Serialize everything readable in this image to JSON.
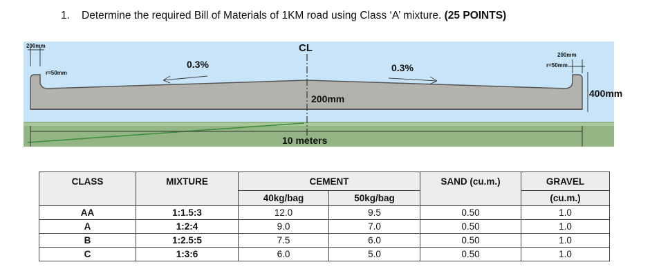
{
  "question": {
    "number": "1.",
    "text": "Determine the required Bill of Materials of 1KM road using Class ‘A’ mixture.",
    "points": "(25 POINTS)"
  },
  "diagram": {
    "centerline_label": "CL",
    "curb_left_width": "200mm",
    "curb_left_radius": "r=50mm",
    "curb_right_width": "200mm",
    "curb_right_radius": "r=50mm",
    "slope_left": "0.3%",
    "slope_right": "0.3%",
    "slab_thickness": "200mm",
    "curb_height": "400mm",
    "road_width": "10 meters",
    "colors": {
      "sky": "#c8e4f8",
      "concrete": "#b4b2ad",
      "grass": "#93b583"
    }
  },
  "table": {
    "headers": {
      "class": "CLASS",
      "mixture": "MIXTURE",
      "cement": "CEMENT",
      "cement_40": "40kg/bag",
      "cement_50": "50kg/bag",
      "sand": "SAND (cu.m.)",
      "gravel": "GRAVEL",
      "gravel_unit": "(cu.m.)"
    },
    "rows": [
      {
        "class": "AA",
        "mixture": "1:1.5:3",
        "c40": "12.0",
        "c50": "9.5",
        "sand": "0.50",
        "gravel": "1.0"
      },
      {
        "class": "A",
        "mixture": "1:2:4",
        "c40": "9.0",
        "c50": "7.0",
        "sand": "0.50",
        "gravel": "1.0"
      },
      {
        "class": "B",
        "mixture": "1:2.5:5",
        "c40": "7.5",
        "c50": "6.0",
        "sand": "0.50",
        "gravel": "1.0"
      },
      {
        "class": "C",
        "mixture": "1:3:6",
        "c40": "6.0",
        "c50": "5.0",
        "sand": "0.50",
        "gravel": "1.0"
      }
    ]
  }
}
